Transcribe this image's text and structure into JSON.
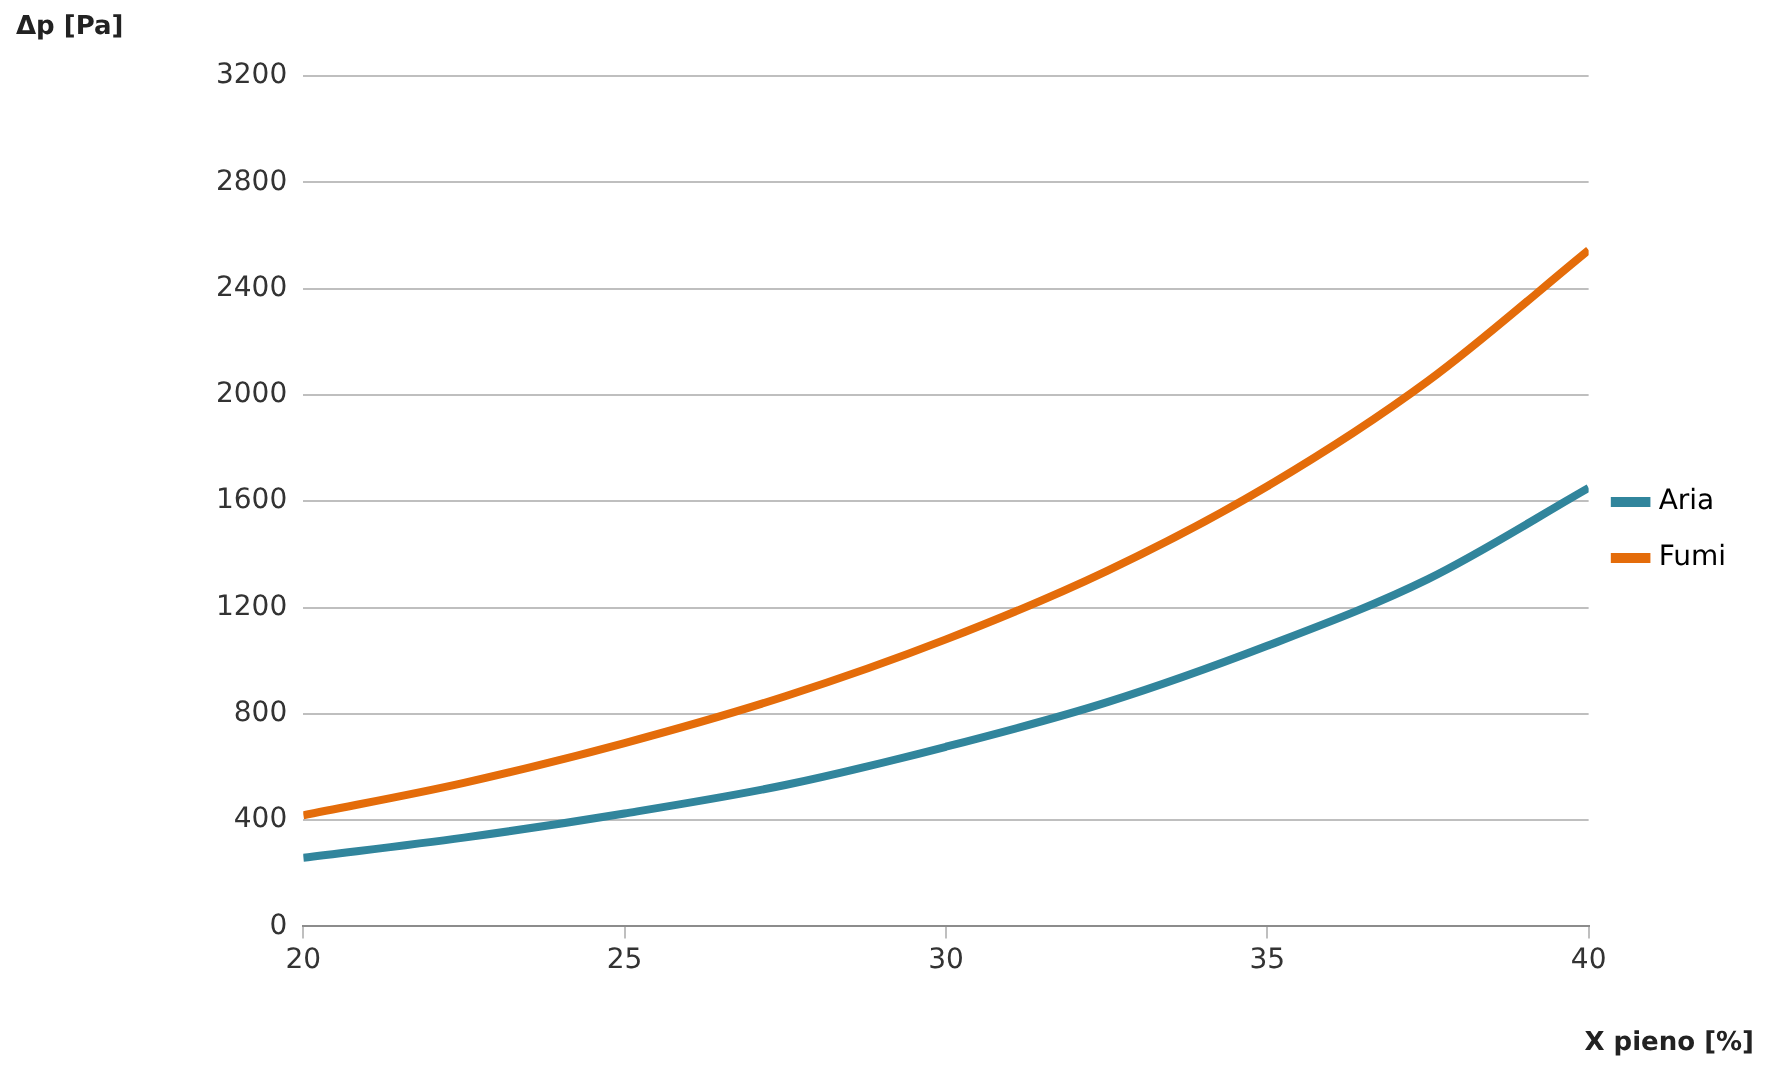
{
  "chart_data": {
    "type": "line",
    "xlabel": "X pieno [%]",
    "ylabel": "Δp [Pa]",
    "x": [
      20,
      22.5,
      25,
      27.5,
      30,
      32.5,
      35,
      37.5,
      40
    ],
    "series": [
      {
        "name": "Aria",
        "color": "#31859c",
        "values": [
          258,
          334,
          425,
          532,
          676,
          843,
          1056,
          1307,
          1650
        ]
      },
      {
        "name": "Fumi",
        "color": "#e46c0a",
        "values": [
          418,
          540,
          690,
          866,
          1080,
          1337,
          1656,
          2052,
          2545
        ]
      }
    ],
    "xlim": [
      20,
      40
    ],
    "xticks": [
      20,
      25,
      30,
      35,
      40
    ],
    "ylim": [
      0,
      3200
    ],
    "yticks": [
      0,
      400,
      800,
      1200,
      1600,
      2000,
      2400,
      2800,
      3200
    ],
    "grid": "y",
    "legend": "right",
    "marker": "none",
    "line_style": "solid"
  }
}
